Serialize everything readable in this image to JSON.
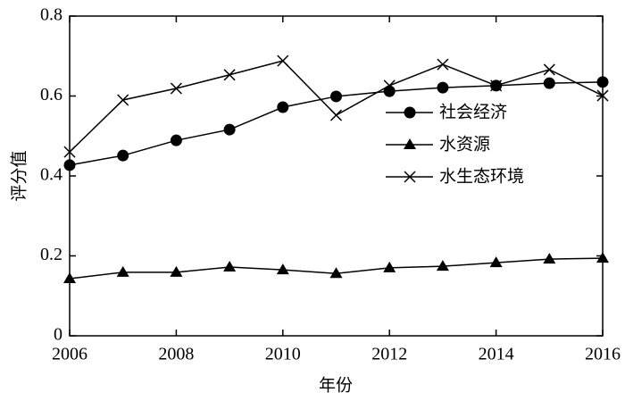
{
  "chart_data": {
    "type": "line",
    "x_label": "年份",
    "y_label": "评分值",
    "x": [
      2006,
      2007,
      2008,
      2009,
      2010,
      2011,
      2012,
      2013,
      2014,
      2015,
      2016
    ],
    "xlim": [
      2006,
      2016
    ],
    "xticks": [
      2006,
      2008,
      2010,
      2012,
      2014,
      2016
    ],
    "ylim": [
      0,
      0.8
    ],
    "yticks": [
      0,
      0.2,
      0.4,
      0.6,
      0.8
    ],
    "legend": "center right",
    "series": [
      {
        "name": "社会经济",
        "color": "#000000",
        "marker": "circle",
        "values": [
          0.427,
          0.451,
          0.489,
          0.516,
          0.572,
          0.599,
          0.612,
          0.621,
          0.626,
          0.632,
          0.635
        ]
      },
      {
        "name": "水资源",
        "color": "#000000",
        "marker": "triangle",
        "values": [
          0.143,
          0.159,
          0.159,
          0.172,
          0.165,
          0.156,
          0.17,
          0.174,
          0.183,
          0.192,
          0.194
        ]
      },
      {
        "name": "水生态环境",
        "color": "#000000",
        "marker": "x",
        "values": [
          0.46,
          0.59,
          0.619,
          0.653,
          0.688,
          0.552,
          0.626,
          0.679,
          0.626,
          0.666,
          0.601
        ]
      }
    ]
  }
}
